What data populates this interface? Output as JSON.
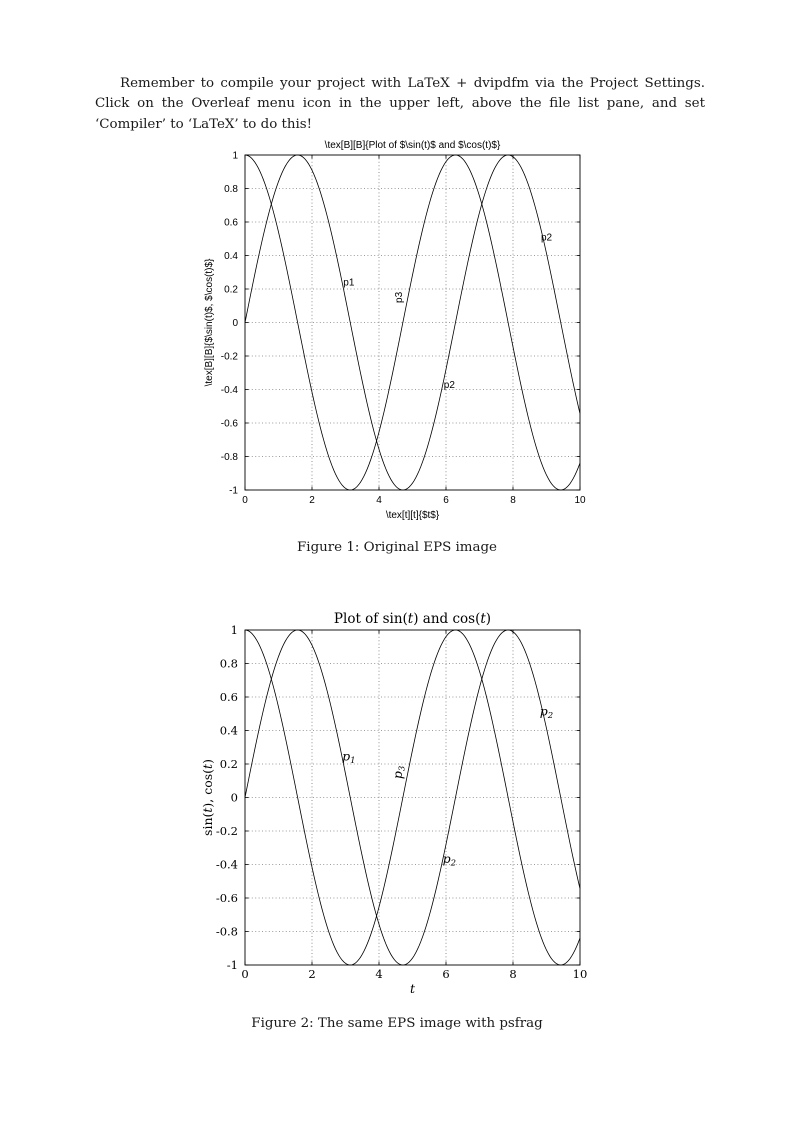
{
  "page": {
    "paragraph": "Remember to compile your project with LaTeX + dvipdfm via the Project Settings. Click on the Overleaf menu icon in the upper left, above the file list pane, and set ‘Compiler’ to ‘LaTeX’ to do this!"
  },
  "figure1": {
    "caption": "Figure 1: Original EPS image"
  },
  "figure2": {
    "caption": "Figure 2: The same EPS image with psfrag"
  },
  "chart_data": [
    {
      "id": "figure-1",
      "type": "line",
      "font": "sans",
      "title": "\\tex[B][B]{Plot of $\\sin(t)$ and $\\cos(t)$}",
      "xlabel": "\\tex[t][t]{$t$}",
      "ylabel": "\\tex[B][B]{$\\sin(t)$, $\\cos(t)$}",
      "xlim": [
        0,
        10
      ],
      "ylim": [
        -1,
        1
      ],
      "xticks": [
        0,
        2,
        4,
        6,
        8,
        10
      ],
      "yticks": [
        -1,
        -0.8,
        -0.6,
        -0.4,
        -0.2,
        0,
        0.2,
        0.4,
        0.6,
        0.8,
        1
      ],
      "grid": true,
      "legend_position": "none",
      "series": [
        {
          "name": "sin(t)",
          "fn": "sin",
          "x_range": [
            0,
            10
          ],
          "samples": 201,
          "color": "#000000"
        },
        {
          "name": "cos(t)",
          "fn": "cos",
          "x_range": [
            0,
            10
          ],
          "samples": 201,
          "color": "#000000"
        }
      ],
      "annotations": [
        {
          "text": "p1",
          "x": 3.1,
          "y": 0.22
        },
        {
          "text": "p3",
          "x": 4.68,
          "y": 0.15,
          "rotate": -90
        },
        {
          "text": "p2",
          "x": 6.1,
          "y": -0.39
        },
        {
          "text": "p2",
          "x": 9.0,
          "y": 0.49
        }
      ]
    },
    {
      "id": "figure-2",
      "type": "line",
      "font": "serif",
      "title": [
        {
          "t": "Plot of sin("
        },
        {
          "t": "t",
          "i": true
        },
        {
          "t": ") and cos("
        },
        {
          "t": "t",
          "i": true
        },
        {
          "t": ")"
        }
      ],
      "xlabel": [
        {
          "t": "t",
          "i": true
        }
      ],
      "ylabel": [
        {
          "t": "sin("
        },
        {
          "t": "t",
          "i": true
        },
        {
          "t": "), cos("
        },
        {
          "t": "t",
          "i": true
        },
        {
          "t": ")"
        }
      ],
      "xlim": [
        0,
        10
      ],
      "ylim": [
        -1,
        1
      ],
      "xticks": [
        0,
        2,
        4,
        6,
        8,
        10
      ],
      "yticks": [
        -1,
        -0.8,
        -0.6,
        -0.4,
        -0.2,
        0,
        0.2,
        0.4,
        0.6,
        0.8,
        1
      ],
      "grid": true,
      "legend_position": "none",
      "series": [
        {
          "name": "sin(t)",
          "fn": "sin",
          "x_range": [
            0,
            10
          ],
          "samples": 201,
          "color": "#000000"
        },
        {
          "name": "cos(t)",
          "fn": "cos",
          "x_range": [
            0,
            10
          ],
          "samples": 201,
          "color": "#000000"
        }
      ],
      "annotations": [
        {
          "text": "p",
          "sub": "1",
          "x": 3.1,
          "y": 0.22,
          "italic": true
        },
        {
          "text": "p",
          "sub": "3",
          "x": 4.68,
          "y": 0.15,
          "rotate": -90,
          "italic": true
        },
        {
          "text": "p",
          "sub": "2",
          "x": 6.1,
          "y": -0.39,
          "italic": true
        },
        {
          "text": "p",
          "sub": "2",
          "x": 9.0,
          "y": 0.49,
          "italic": true
        }
      ]
    }
  ]
}
